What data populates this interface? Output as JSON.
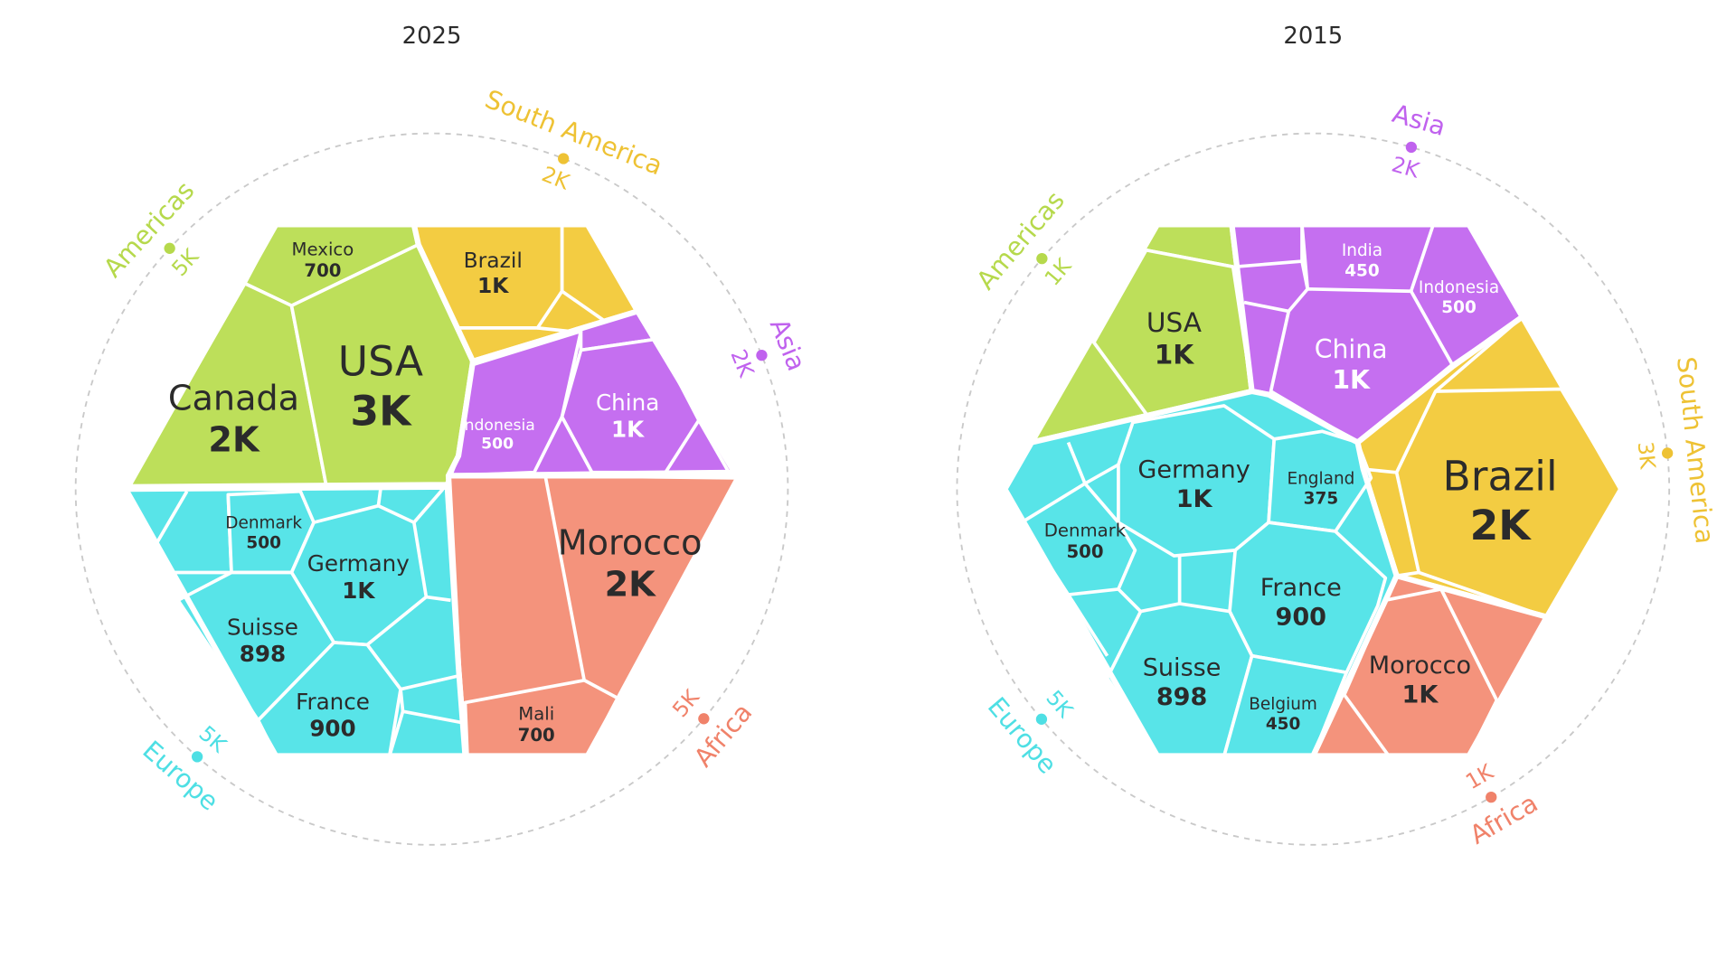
{
  "chart_data": [
    {
      "type": "voronoi-treemap",
      "title": "2025",
      "regions": [
        {
          "name": "Americas",
          "value": "5K",
          "color": "#bddf5a",
          "countries": [
            {
              "name": "Mexico",
              "value": "700"
            },
            {
              "name": "Canada",
              "value": "2K"
            },
            {
              "name": "USA",
              "value": "3K"
            }
          ]
        },
        {
          "name": "South America",
          "value": "2K",
          "color": "#f3cc42",
          "countries": [
            {
              "name": "Brazil",
              "value": "1K"
            }
          ]
        },
        {
          "name": "Asia",
          "value": "2K",
          "color": "#c56ff0",
          "countries": [
            {
              "name": "Indonesia",
              "value": "500"
            },
            {
              "name": "China",
              "value": "1K"
            }
          ]
        },
        {
          "name": "Africa",
          "value": "5K",
          "color": "#f4937c",
          "countries": [
            {
              "name": "Morocco",
              "value": "2K"
            },
            {
              "name": "Mali",
              "value": "700"
            }
          ]
        },
        {
          "name": "Europe",
          "value": "5K",
          "color": "#58e4e8",
          "countries": [
            {
              "name": "Denmark",
              "value": "500"
            },
            {
              "name": "Germany",
              "value": "1K"
            },
            {
              "name": "Suisse",
              "value": "898"
            },
            {
              "name": "France",
              "value": "900"
            }
          ]
        }
      ]
    },
    {
      "type": "voronoi-treemap",
      "title": "2015",
      "regions": [
        {
          "name": "Americas",
          "value": "1K",
          "color": "#bddf5a",
          "countries": [
            {
              "name": "USA",
              "value": "1K"
            }
          ]
        },
        {
          "name": "Asia",
          "value": "2K",
          "color": "#c56ff0",
          "countries": [
            {
              "name": "India",
              "value": "450"
            },
            {
              "name": "Indonesia",
              "value": "500"
            },
            {
              "name": "China",
              "value": "1K"
            }
          ]
        },
        {
          "name": "South America",
          "value": "3K",
          "color": "#f3cc42",
          "countries": [
            {
              "name": "Brazil",
              "value": "2K"
            }
          ]
        },
        {
          "name": "Africa",
          "value": "1K",
          "color": "#f4937c",
          "countries": [
            {
              "name": "Morocco",
              "value": "1K"
            }
          ]
        },
        {
          "name": "Europe",
          "value": "5K",
          "color": "#58e4e8",
          "countries": [
            {
              "name": "Germany",
              "value": "1K"
            },
            {
              "name": "England",
              "value": "375"
            },
            {
              "name": "Denmark",
              "value": "500"
            },
            {
              "name": "France",
              "value": "900"
            },
            {
              "name": "Suisse",
              "value": "898"
            },
            {
              "name": "Belgium",
              "value": "450"
            }
          ]
        }
      ]
    }
  ]
}
